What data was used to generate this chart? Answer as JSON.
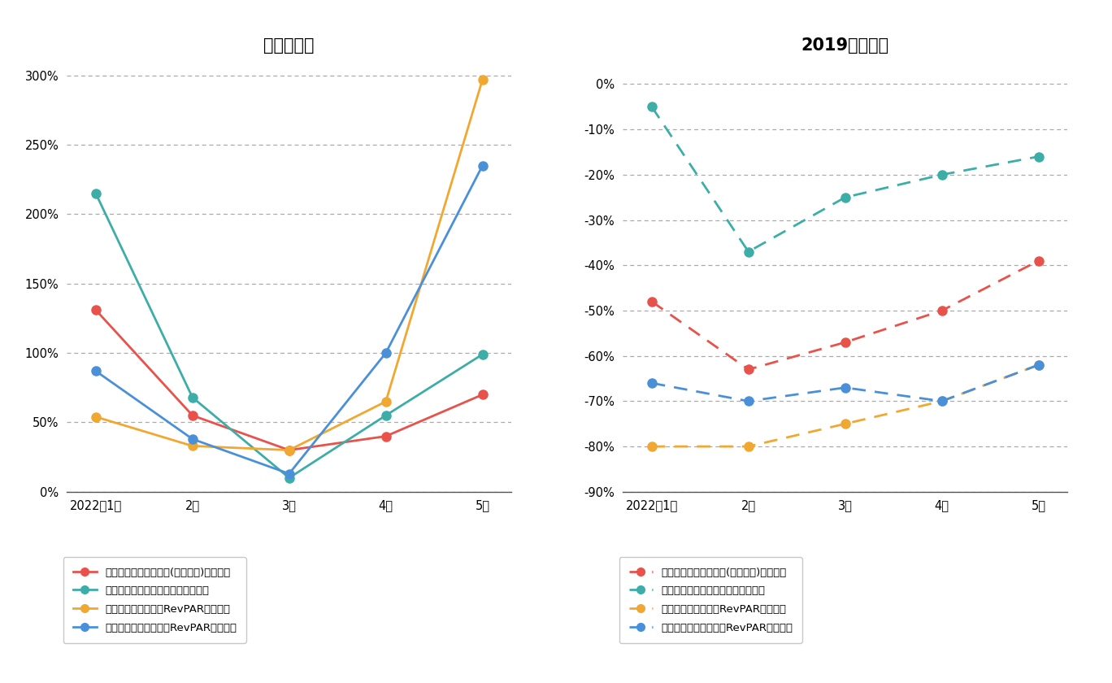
{
  "left_title": "前年同月比",
  "right_title": "2019年同月比",
  "x_labels": [
    "2022年1月",
    "2月",
    "3月",
    "4月",
    "5月"
  ],
  "left": {
    "shangri_la": [
      131,
      55,
      30,
      40,
      70
    ],
    "hilton": [
      215,
      68,
      10,
      55,
      99
    ],
    "courtyard_tokyo": [
      54,
      33,
      30,
      65,
      297
    ],
    "courtyard_osaka": [
      87,
      38,
      13,
      100,
      235
    ]
  },
  "right": {
    "shangri_la": [
      -48,
      -63,
      -57,
      -50,
      -39
    ],
    "hilton": [
      -5,
      -37,
      -25,
      -20,
      -16
    ],
    "courtyard_tokyo": [
      -80,
      -80,
      -75,
      -70,
      -62
    ],
    "courtyard_osaka": [
      -66,
      -70,
      -67,
      -70,
      -62
    ]
  },
  "colors": {
    "shangri_la": "#E8524A",
    "hilton": "#3DADA8",
    "courtyard_tokyo": "#F0A830",
    "courtyard_osaka": "#4A90D9"
  },
  "legend_labels": {
    "shangri_la": "シャングリ・ラ［賞料(売上連動)ベース］",
    "hilton": "ヒルトン小田原［売上総額ベース］",
    "courtyard_tokyo": "コートヤード東京［RevPARベース］",
    "courtyard_osaka": "コートヤード新大阪［RevPARベース］"
  },
  "left_ylim": [
    0,
    310
  ],
  "left_yticks": [
    0,
    50,
    100,
    150,
    200,
    250,
    300
  ],
  "right_ylim": [
    -90,
    5
  ],
  "right_yticks": [
    0,
    -10,
    -20,
    -30,
    -40,
    -50,
    -60,
    -70,
    -80,
    -90
  ],
  "background_color": "#FFFFFF"
}
